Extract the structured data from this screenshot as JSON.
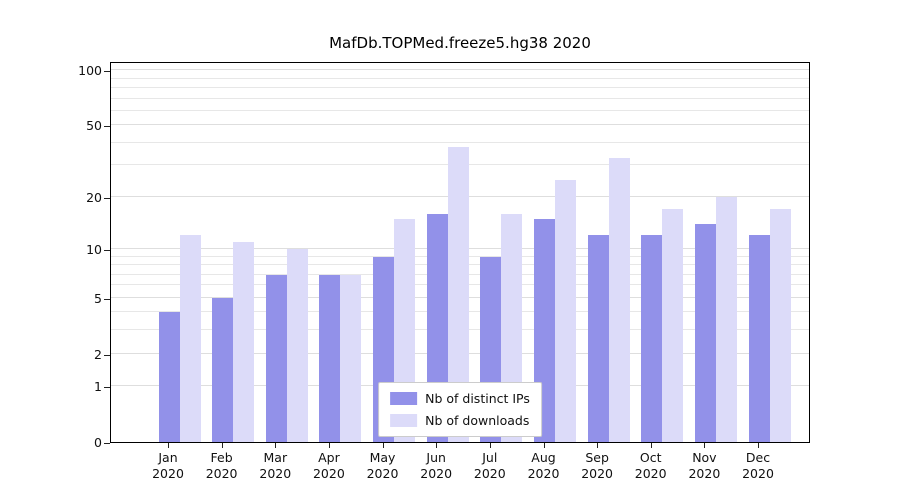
{
  "chart_data": {
    "type": "bar",
    "title": "MafDb.TOPMed.freeze5.hg38 2020",
    "categories": [
      "Jan",
      "Feb",
      "Mar",
      "Apr",
      "May",
      "Jun",
      "Jul",
      "Aug",
      "Sep",
      "Oct",
      "Nov",
      "Dec"
    ],
    "x_year_label": "2020",
    "series": [
      {
        "name": "Nb of distinct IPs",
        "color": "#9291e9",
        "values": [
          4,
          5,
          7,
          7,
          9,
          16,
          9,
          15,
          12,
          12,
          14,
          12
        ]
      },
      {
        "name": "Nb of downloads",
        "color": "#dcdbf9",
        "values": [
          12,
          11,
          10,
          7,
          15,
          38,
          16,
          25,
          33,
          17,
          20,
          17
        ]
      }
    ],
    "xlabel": "",
    "ylabel": "",
    "yticks": [
      0,
      1,
      2,
      5,
      10,
      20,
      50,
      100
    ],
    "ylim": [
      0,
      100
    ],
    "yscale": "log1p",
    "grid": true,
    "legend_position": "lower center"
  }
}
